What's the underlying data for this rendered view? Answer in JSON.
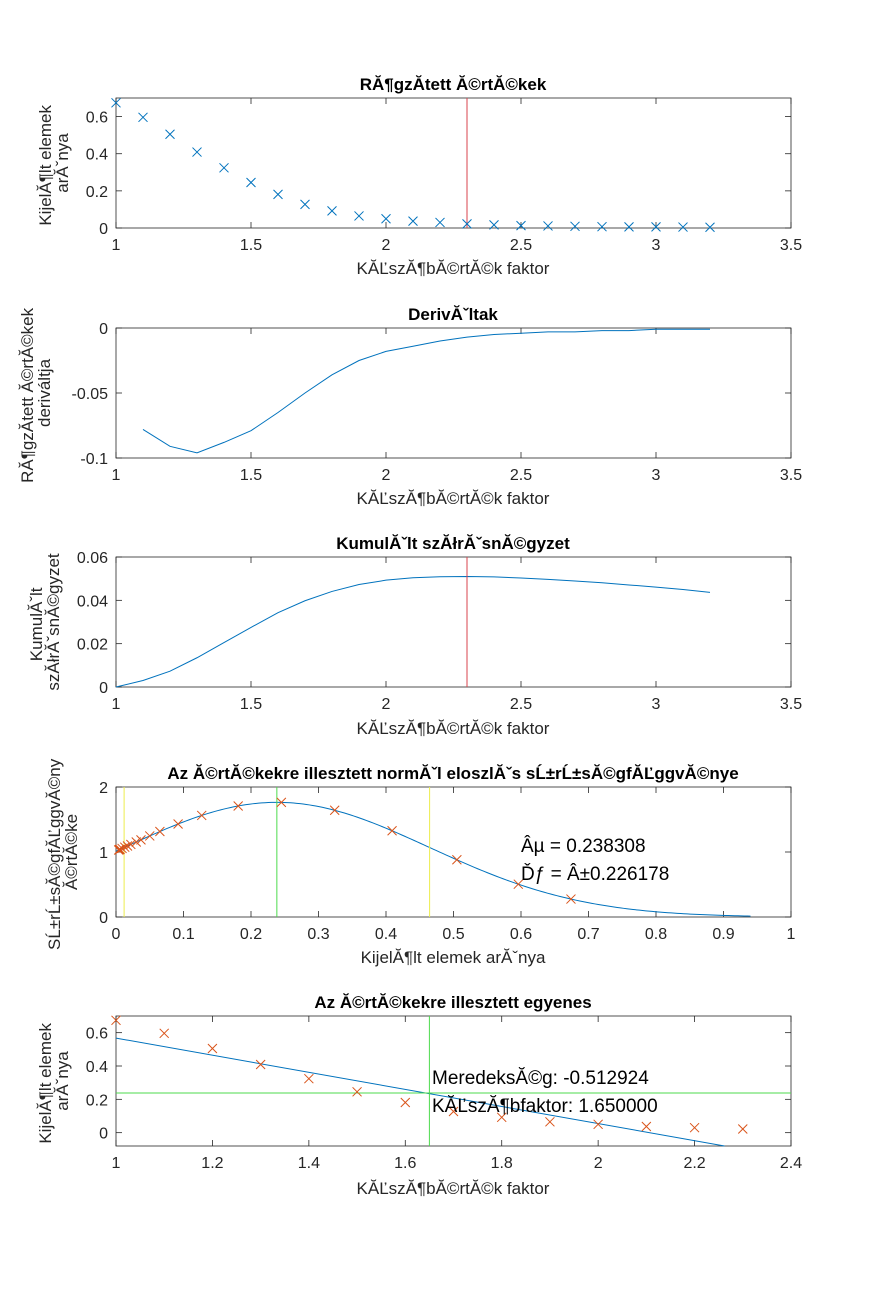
{
  "colors": {
    "blue": "#0072BD",
    "red_line": "#D9434E",
    "orange": "#D95319",
    "green": "#4DDB4D",
    "yellow": "#EDED4D"
  },
  "chart_data": [
    {
      "type": "scatter",
      "title": "RĂ¶gzĂ­tett Ă©rtĂ©kek",
      "xlabel": "KĂĽszĂ¶bĂ©rtĂ©k faktor",
      "ylabel": [
        "KijelĂ¶lt elemek",
        "arĂˇnya"
      ],
      "xlim": [
        1,
        3.5
      ],
      "ylim": [
        0,
        0.7
      ],
      "xticks": [
        1,
        1.5,
        2,
        2.5,
        3,
        3.5
      ],
      "xtick_labels": [
        "1",
        "1.5",
        "2",
        "2.5",
        "3",
        "3.5"
      ],
      "yticks": [
        0,
        0.2,
        0.4,
        0.6
      ],
      "ytick_labels": [
        "0",
        "0.2",
        "0.4",
        "0.6"
      ],
      "series": [
        {
          "name": "recorded",
          "marker": "x",
          "x": [
            1,
            1.1,
            1.2,
            1.3,
            1.4,
            1.5,
            1.6,
            1.7,
            1.8,
            1.9,
            2.0,
            2.1,
            2.2,
            2.3,
            2.4,
            2.5,
            2.6,
            2.7,
            2.8,
            2.9,
            3.0,
            3.1,
            3.2
          ],
          "y": [
            0.674,
            0.596,
            0.505,
            0.409,
            0.324,
            0.245,
            0.181,
            0.127,
            0.092,
            0.065,
            0.05,
            0.037,
            0.03,
            0.022,
            0.017,
            0.013,
            0.011,
            0.009,
            0.007,
            0.006,
            0.006,
            0.005,
            0.004
          ]
        }
      ],
      "vlines": [
        2.3
      ]
    },
    {
      "type": "line",
      "title": "DerivĂˇltak",
      "xlabel": "KĂĽszĂ¶bĂ©rtĂ©k faktor",
      "ylabel": [
        "RĂ¶gzĂ­tett Ă©rtĂ©kek",
        "deriváltja"
      ],
      "xlim": [
        1,
        3.5
      ],
      "ylim": [
        -0.1,
        0
      ],
      "xticks": [
        1,
        1.5,
        2,
        2.5,
        3,
        3.5
      ],
      "xtick_labels": [
        "1",
        "1.5",
        "2",
        "2.5",
        "3",
        "3.5"
      ],
      "yticks": [
        -0.1,
        -0.05,
        0
      ],
      "ytick_labels": [
        "-0.1",
        "-0.05",
        "0"
      ],
      "series": [
        {
          "name": "derivative",
          "x": [
            1.1,
            1.2,
            1.3,
            1.4,
            1.5,
            1.6,
            1.7,
            1.8,
            1.9,
            2.0,
            2.1,
            2.2,
            2.3,
            2.4,
            2.5,
            2.6,
            2.7,
            2.8,
            2.9,
            3.0,
            3.1,
            3.2
          ],
          "y": [
            -0.078,
            -0.091,
            -0.096,
            -0.088,
            -0.079,
            -0.065,
            -0.05,
            -0.036,
            -0.025,
            -0.018,
            -0.014,
            -0.01,
            -0.007,
            -0.005,
            -0.004,
            -0.003,
            -0.003,
            -0.002,
            -0.002,
            -0.001,
            -0.001,
            -0.001
          ]
        }
      ]
    },
    {
      "type": "line",
      "title": "KumulĂˇlt szĂłrĂˇsnĂ©gyzet",
      "xlabel": "KĂĽszĂ¶bĂ©rtĂ©k faktor",
      "ylabel": [
        "KumulĂˇlt",
        "szĂłrĂˇsnĂ©gyzet"
      ],
      "xlim": [
        1,
        3.5
      ],
      "ylim": [
        0,
        0.06
      ],
      "xticks": [
        1,
        1.5,
        2,
        2.5,
        3,
        3.5
      ],
      "xtick_labels": [
        "1",
        "1.5",
        "2",
        "2.5",
        "3",
        "3.5"
      ],
      "yticks": [
        0,
        0.02,
        0.04,
        0.06
      ],
      "ytick_labels": [
        "0",
        "0.02",
        "0.04",
        "0.06"
      ],
      "series": [
        {
          "name": "cumulative variance",
          "x": [
            1.0,
            1.1,
            1.2,
            1.3,
            1.4,
            1.5,
            1.6,
            1.7,
            1.8,
            1.9,
            2.0,
            2.1,
            2.2,
            2.3,
            2.4,
            2.5,
            2.6,
            2.7,
            2.8,
            2.9,
            3.0,
            3.1,
            3.2
          ],
          "y": [
            0.0,
            0.003,
            0.0073,
            0.0135,
            0.0205,
            0.0275,
            0.0343,
            0.0398,
            0.0441,
            0.0473,
            0.0493,
            0.0504,
            0.0509,
            0.051,
            0.0508,
            0.0503,
            0.0497,
            0.0489,
            0.0481,
            0.0471,
            0.0461,
            0.045,
            0.0437
          ]
        }
      ],
      "vlines": [
        2.3
      ]
    },
    {
      "type": "line",
      "title": "Az Ă©rtĂ©kekre illesztett normĂˇl eloszlĂˇs sĹ±rĹ±sĂ©gfĂĽggvĂ©nye",
      "xlabel": "KijelĂ¶lt elemek arĂˇnya",
      "ylabel": [
        "SĹ±rĹ±sĂ©gfĂĽggvĂ©ny",
        "Ă©rtĂ©ke"
      ],
      "xlim": [
        0,
        1
      ],
      "ylim": [
        0,
        2
      ],
      "xticks": [
        0,
        0.1,
        0.2,
        0.3,
        0.4,
        0.5,
        0.6,
        0.7,
        0.8,
        0.9,
        1
      ],
      "xtick_labels": [
        "0",
        "0.1",
        "0.2",
        "0.3",
        "0.4",
        "0.5",
        "0.6",
        "0.7",
        "0.8",
        "0.9",
        "1"
      ],
      "yticks": [
        0,
        1,
        2
      ],
      "ytick_labels": [
        "0",
        "1",
        "2"
      ],
      "mu": 0.238308,
      "sigma": 0.226178,
      "curve_range": [
        0,
        0.94
      ],
      "points_x": [
        0.004,
        0.005,
        0.006,
        0.009,
        0.013,
        0.017,
        0.022,
        0.03,
        0.037,
        0.05,
        0.065,
        0.092,
        0.127,
        0.181,
        0.245,
        0.324,
        0.409,
        0.505,
        0.596,
        0.674
      ],
      "vlines_green": [
        0.238308
      ],
      "vlines_yellow": [
        0.012,
        0.4646
      ],
      "annotations": [
        "Âµ = 0.238308",
        "Ďƒ = Â±0.226178"
      ]
    },
    {
      "type": "scatter",
      "title": "Az Ă©rtĂ©kekre illesztett egyenes",
      "xlabel": "KĂĽszĂ¶bĂ©rtĂ©k faktor",
      "ylabel": [
        "KijelĂ¶lt elemek",
        "arĂˇnya"
      ],
      "xlim": [
        1,
        2.4
      ],
      "ylim": [
        -0.08,
        0.7
      ],
      "xticks": [
        1,
        1.2,
        1.4,
        1.6,
        1.8,
        2,
        2.2,
        2.4
      ],
      "xtick_labels": [
        "1",
        "1.2",
        "1.4",
        "1.6",
        "1.8",
        "2",
        "2.2",
        "2.4"
      ],
      "yticks": [
        0,
        0.2,
        0.4,
        0.6
      ],
      "ytick_labels": [
        "0",
        "0.2",
        "0.4",
        "0.6"
      ],
      "points": {
        "x": [
          1,
          1.1,
          1.2,
          1.3,
          1.4,
          1.5,
          1.6,
          1.7,
          1.8,
          1.9,
          2.0,
          2.1,
          2.2,
          2.3
        ],
        "y": [
          0.674,
          0.596,
          0.505,
          0.409,
          0.324,
          0.245,
          0.181,
          0.127,
          0.092,
          0.065,
          0.05,
          0.037,
          0.03,
          0.022
        ]
      },
      "fit": {
        "slope": -0.512924,
        "intercept": 1.0803
      },
      "hline": 0.238308,
      "vline": 1.65,
      "annotations": [
        "MeredeksĂ©g: -0.512924",
        "KĂĽszĂ¶bfaktor: 1.650000"
      ]
    }
  ]
}
